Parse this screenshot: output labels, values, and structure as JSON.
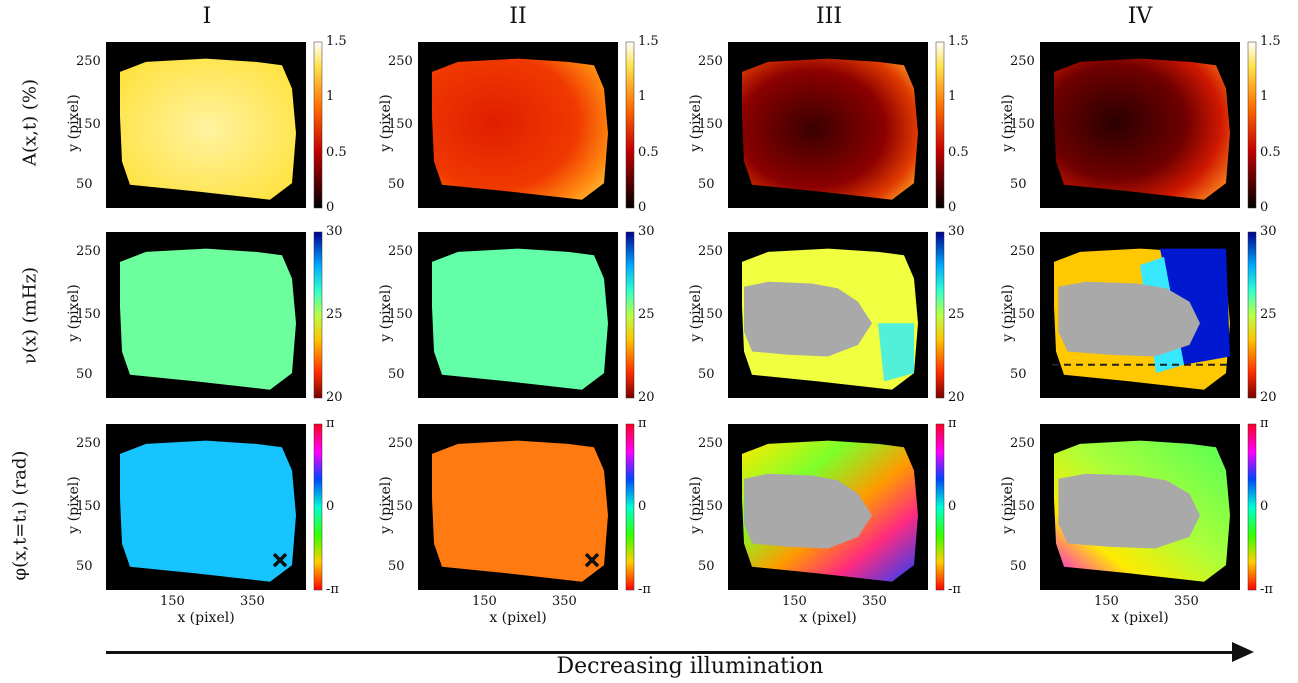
{
  "columns": [
    "I",
    "II",
    "III",
    "IV"
  ],
  "rows": [
    {
      "label": "A(x,t) (%)",
      "colorbar_ticks": [
        "1.5",
        "1",
        "0.5",
        "0"
      ],
      "colormap": "hot"
    },
    {
      "label": "ν(x) (mHz)",
      "colorbar_ticks": [
        "30",
        "25",
        "20"
      ],
      "colormap": "jet-reversed"
    },
    {
      "label": "φ(x,t=t₁) (rad)",
      "colorbar_ticks": [
        "π",
        "0",
        "-π"
      ],
      "colormap": "hsv"
    }
  ],
  "axes": {
    "y_label": "y (pixel)",
    "x_label": "x (pixel)",
    "y_ticks": [
      "250",
      "150",
      "50"
    ],
    "x_ticks": [
      "150",
      "350"
    ]
  },
  "caption": "Decreasing illumination",
  "colors": {
    "background": "#000000",
    "masked_region": "#a9a9a9",
    "marker": "#111111"
  }
}
